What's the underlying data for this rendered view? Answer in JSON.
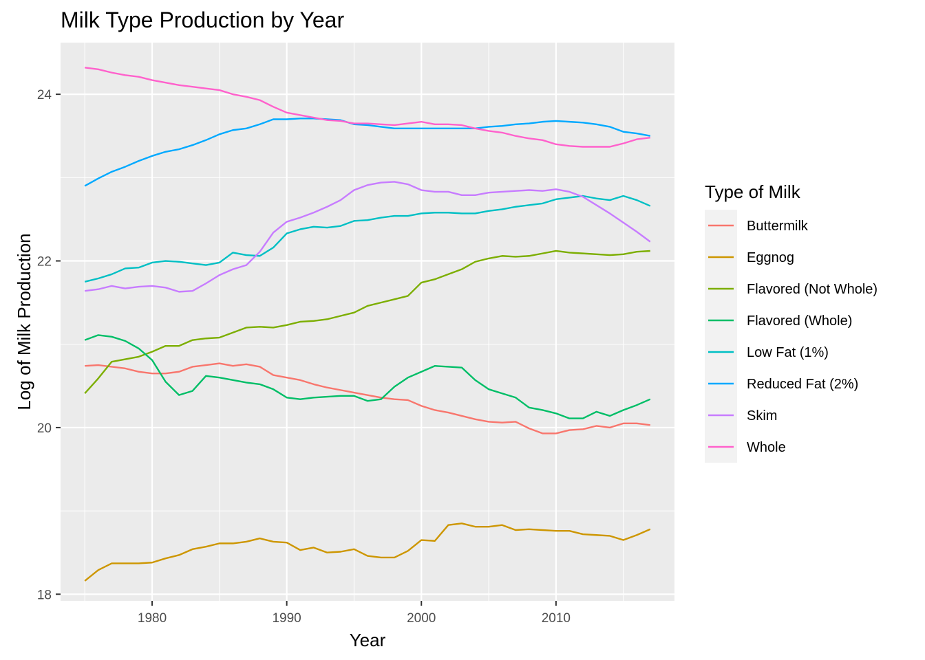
{
  "chart_data": {
    "type": "line",
    "title": "Milk Type Production by Year",
    "xlabel": "Year",
    "ylabel": "Log of Milk Production",
    "xlim": [
      1973.2,
      2018.8
    ],
    "ylim": [
      17.92,
      24.62
    ],
    "x_ticks": [
      1980,
      1990,
      2000,
      2010
    ],
    "y_ticks": [
      18,
      20,
      22,
      24
    ],
    "grid": true,
    "legend": {
      "title": "Type of Milk",
      "position": "right"
    },
    "x": [
      1975,
      1976,
      1977,
      1978,
      1979,
      1980,
      1981,
      1982,
      1983,
      1984,
      1985,
      1986,
      1987,
      1988,
      1989,
      1990,
      1991,
      1992,
      1993,
      1994,
      1995,
      1996,
      1997,
      1998,
      1999,
      2000,
      2001,
      2002,
      2003,
      2004,
      2005,
      2006,
      2007,
      2008,
      2009,
      2010,
      2011,
      2012,
      2013,
      2014,
      2015,
      2016,
      2017
    ],
    "series": [
      {
        "name": "Buttermilk",
        "color": "#F8766D",
        "values": [
          20.74,
          20.75,
          20.73,
          20.71,
          20.67,
          20.65,
          20.65,
          20.67,
          20.73,
          20.75,
          20.77,
          20.74,
          20.76,
          20.73,
          20.63,
          20.6,
          20.57,
          20.52,
          20.48,
          20.45,
          20.42,
          20.39,
          20.36,
          20.34,
          20.33,
          20.26,
          20.21,
          20.18,
          20.14,
          20.1,
          20.07,
          20.06,
          20.07,
          19.99,
          19.93,
          19.93,
          19.97,
          19.98,
          20.02,
          20.0,
          20.05,
          20.05,
          20.03
        ]
      },
      {
        "name": "Eggnog",
        "color": "#CD9600",
        "values": [
          18.16,
          18.29,
          18.37,
          18.37,
          18.37,
          18.38,
          18.43,
          18.47,
          18.54,
          18.57,
          18.61,
          18.61,
          18.63,
          18.67,
          18.63,
          18.62,
          18.53,
          18.56,
          18.5,
          18.51,
          18.54,
          18.46,
          18.44,
          18.44,
          18.52,
          18.65,
          18.64,
          18.83,
          18.85,
          18.81,
          18.81,
          18.83,
          18.77,
          18.78,
          18.77,
          18.76,
          18.76,
          18.72,
          18.71,
          18.7,
          18.65,
          18.71,
          18.78
        ]
      },
      {
        "name": "Flavored  (Not Whole)",
        "color": "#7CAE00",
        "values": [
          20.41,
          20.59,
          20.79,
          20.82,
          20.85,
          20.91,
          20.98,
          20.98,
          21.05,
          21.07,
          21.08,
          21.14,
          21.2,
          21.21,
          21.2,
          21.23,
          21.27,
          21.28,
          21.3,
          21.34,
          21.38,
          21.46,
          21.5,
          21.54,
          21.58,
          21.74,
          21.78,
          21.84,
          21.9,
          21.99,
          22.03,
          22.06,
          22.05,
          22.06,
          22.09,
          22.12,
          22.1,
          22.09,
          22.08,
          22.07,
          22.08,
          22.11,
          22.12
        ]
      },
      {
        "name": "Flavored (Whole)",
        "color": "#00BE67",
        "values": [
          21.05,
          21.11,
          21.09,
          21.04,
          20.95,
          20.81,
          20.55,
          20.39,
          20.44,
          20.62,
          20.6,
          20.57,
          20.54,
          20.52,
          20.46,
          20.36,
          20.34,
          20.36,
          20.37,
          20.38,
          20.38,
          20.32,
          20.34,
          20.49,
          20.6,
          20.67,
          20.74,
          20.73,
          20.72,
          20.57,
          20.46,
          20.41,
          20.36,
          20.24,
          20.21,
          20.17,
          20.11,
          20.11,
          20.19,
          20.14,
          20.21,
          20.27,
          20.34
        ]
      },
      {
        "name": "Low Fat (1%)",
        "color": "#00BFC4",
        "values": [
          21.75,
          21.79,
          21.84,
          21.91,
          21.92,
          21.98,
          22.0,
          21.99,
          21.97,
          21.95,
          21.98,
          22.1,
          22.07,
          22.06,
          22.16,
          22.33,
          22.38,
          22.41,
          22.4,
          22.42,
          22.48,
          22.49,
          22.52,
          22.54,
          22.54,
          22.57,
          22.58,
          22.58,
          22.57,
          22.57,
          22.6,
          22.62,
          22.65,
          22.67,
          22.69,
          22.74,
          22.76,
          22.78,
          22.75,
          22.73,
          22.78,
          22.73,
          22.66
        ]
      },
      {
        "name": "Reduced Fat (2%)",
        "color": "#00A9FF",
        "values": [
          22.9,
          22.99,
          23.07,
          23.13,
          23.2,
          23.26,
          23.31,
          23.34,
          23.39,
          23.45,
          23.52,
          23.57,
          23.59,
          23.64,
          23.7,
          23.7,
          23.71,
          23.71,
          23.7,
          23.69,
          23.64,
          23.63,
          23.61,
          23.59,
          23.59,
          23.59,
          23.59,
          23.59,
          23.59,
          23.59,
          23.61,
          23.62,
          23.64,
          23.65,
          23.67,
          23.68,
          23.67,
          23.66,
          23.64,
          23.61,
          23.55,
          23.53,
          23.5
        ]
      },
      {
        "name": "Skim",
        "color": "#C77CFF",
        "values": [
          21.64,
          21.66,
          21.7,
          21.67,
          21.69,
          21.7,
          21.68,
          21.63,
          21.64,
          21.73,
          21.83,
          21.9,
          21.95,
          22.11,
          22.34,
          22.47,
          22.52,
          22.58,
          22.65,
          22.73,
          22.85,
          22.91,
          22.94,
          22.95,
          22.92,
          22.85,
          22.83,
          22.83,
          22.79,
          22.79,
          22.82,
          22.83,
          22.84,
          22.85,
          22.84,
          22.86,
          22.83,
          22.77,
          22.67,
          22.57,
          22.46,
          22.35,
          22.23
        ]
      },
      {
        "name": "Whole",
        "color": "#FF61CC",
        "values": [
          24.32,
          24.3,
          24.26,
          24.23,
          24.21,
          24.17,
          24.14,
          24.11,
          24.09,
          24.07,
          24.05,
          24.0,
          23.97,
          23.93,
          23.85,
          23.78,
          23.75,
          23.72,
          23.69,
          23.68,
          23.65,
          23.65,
          23.64,
          23.63,
          23.65,
          23.67,
          23.64,
          23.64,
          23.63,
          23.59,
          23.56,
          23.54,
          23.5,
          23.47,
          23.45,
          23.4,
          23.38,
          23.37,
          23.37,
          23.37,
          23.41,
          23.46,
          23.48
        ]
      }
    ]
  }
}
